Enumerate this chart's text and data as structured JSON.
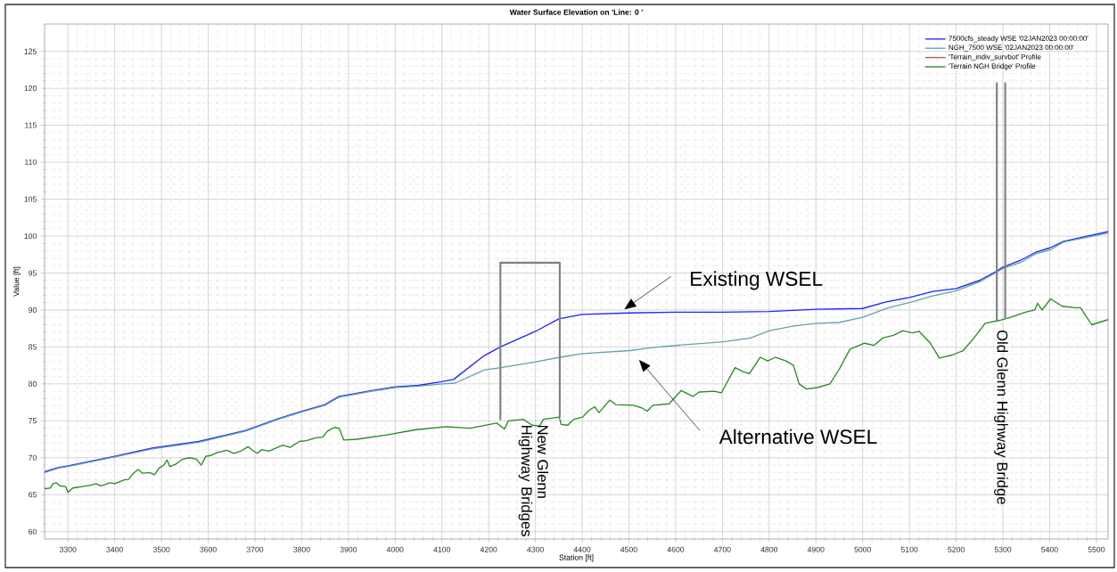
{
  "chart_data": {
    "type": "line",
    "title": "Water Surface Elevation on 'Line: 0 '",
    "xlabel": "Station [ft]",
    "ylabel": "Value [ft]",
    "xlim": [
      3250,
      5525
    ],
    "ylim": [
      59,
      128.7
    ],
    "xticks": [
      3300,
      3400,
      3500,
      3600,
      3700,
      3800,
      3900,
      4000,
      4100,
      4200,
      4300,
      4400,
      4500,
      4600,
      4700,
      4800,
      4900,
      5000,
      5100,
      5200,
      5300,
      5400,
      5500
    ],
    "yticks": [
      60,
      65,
      70,
      75,
      80,
      85,
      90,
      95,
      100,
      105,
      110,
      115,
      120,
      125
    ],
    "grid": true,
    "legend": "top right",
    "series": [
      {
        "name": "7500cfs_steady WSE '02JAN2023 00:00:00'",
        "color": "#2222ff",
        "x": [
          3250,
          3280,
          3300,
          3400,
          3480,
          3580,
          3680,
          3750,
          3800,
          3850,
          3880,
          3950,
          4000,
          4050,
          4100,
          4125,
          4190,
          4225,
          4300,
          4350,
          4400,
          4500,
          4600,
          4700,
          4800,
          4900,
          5000,
          5050,
          5100,
          5150,
          5200,
          5250,
          5285,
          5300,
          5340,
          5370,
          5400,
          5430,
          5525
        ],
        "values": [
          68.1,
          68.7,
          68.9,
          70.2,
          71.3,
          72.2,
          73.7,
          75.3,
          76.3,
          77.2,
          78.3,
          79.1,
          79.6,
          79.8,
          80.3,
          80.6,
          83.8,
          85.0,
          87.1,
          88.8,
          89.4,
          89.6,
          89.7,
          89.7,
          89.8,
          90.1,
          90.2,
          91.1,
          91.7,
          92.5,
          92.9,
          94.0,
          95.2,
          95.8,
          96.8,
          97.8,
          98.4,
          99.3,
          100.6
        ]
      },
      {
        "name": "NGH_7500 WSE '02JAN2023 00:00:00'",
        "color": "#62a3aa",
        "x": [
          3250,
          3280,
          3300,
          3400,
          3480,
          3580,
          3680,
          3750,
          3800,
          3850,
          3880,
          3950,
          4000,
          4050,
          4100,
          4128,
          4191,
          4226,
          4293,
          4352,
          4401,
          4502,
          4550,
          4600,
          4702,
          4760,
          4801,
          4850,
          4900,
          4949,
          5000,
          5055,
          5100,
          5150,
          5200,
          5250,
          5300,
          5340,
          5370,
          5400,
          5430,
          5525
        ],
        "values": [
          68.0,
          68.6,
          68.8,
          70.1,
          71.2,
          72.1,
          73.6,
          75.2,
          76.2,
          77.1,
          78.2,
          79.0,
          79.5,
          79.7,
          80.0,
          80.1,
          81.9,
          82.2,
          82.9,
          83.6,
          84.1,
          84.5,
          84.9,
          85.2,
          85.7,
          86.2,
          87.2,
          87.8,
          88.2,
          88.3,
          89.0,
          90.3,
          91.0,
          91.9,
          92.6,
          93.8,
          95.6,
          96.5,
          97.6,
          98.1,
          99.2,
          100.4
        ]
      },
      {
        "name": "'Terrain_indiv_survbot' Profile",
        "color": "#c0504d"
      },
      {
        "name": "'Terrain NGH Bridge' Profile",
        "color": "#2a8a22",
        "x": [
          3250,
          3262,
          3268,
          3275,
          3283,
          3295,
          3300,
          3310,
          3330,
          3350,
          3360,
          3370,
          3390,
          3400,
          3420,
          3430,
          3440,
          3450,
          3460,
          3475,
          3485,
          3495,
          3505,
          3512,
          3518,
          3530,
          3545,
          3560,
          3575,
          3585,
          3595,
          3605,
          3620,
          3640,
          3655,
          3670,
          3685,
          3695,
          3705,
          3715,
          3730,
          3745,
          3760,
          3775,
          3795,
          3810,
          3830,
          3845,
          3855,
          3870,
          3880,
          3890,
          3918,
          3982,
          4045,
          4109,
          4160,
          4217,
          4234,
          4242,
          4274,
          4293,
          4309,
          4317,
          4351,
          4355,
          4369,
          4382,
          4401,
          4414,
          4427,
          4436,
          4459,
          4472,
          4510,
          4529,
          4539,
          4551,
          4586,
          4612,
          4637,
          4650,
          4682,
          4698,
          4727,
          4746,
          4758,
          4781,
          4797,
          4813,
          4836,
          4852,
          4864,
          4880,
          4903,
          4930,
          4950,
          4973,
          5004,
          5024,
          5043,
          5067,
          5086,
          5106,
          5121,
          5145,
          5164,
          5191,
          5215,
          5238,
          5262,
          5293,
          5317,
          5348,
          5368,
          5374,
          5384,
          5402,
          5427,
          5455,
          5466,
          5490,
          5525
        ],
        "values": [
          65.8,
          65.9,
          66.5,
          66.6,
          66.2,
          66.1,
          65.3,
          65.9,
          66.1,
          66.3,
          66.5,
          66.2,
          66.6,
          66.5,
          67.0,
          67.1,
          67.9,
          68.4,
          67.9,
          68.0,
          67.7,
          68.6,
          69.0,
          69.7,
          68.8,
          69.1,
          69.8,
          70.0,
          69.8,
          69.0,
          70.2,
          70.3,
          70.7,
          71.0,
          70.6,
          70.9,
          71.5,
          71.0,
          70.6,
          71.1,
          70.9,
          71.3,
          71.7,
          71.4,
          72.2,
          72.3,
          72.7,
          72.8,
          73.6,
          74.1,
          74.0,
          72.4,
          72.5,
          73.1,
          73.8,
          74.2,
          74.0,
          74.7,
          73.9,
          75.0,
          75.2,
          74.4,
          74.3,
          75.2,
          75.5,
          74.5,
          74.4,
          75.2,
          75.5,
          76.4,
          76.9,
          76.1,
          77.8,
          77.2,
          77.1,
          76.7,
          76.3,
          77.1,
          77.3,
          79.1,
          78.3,
          78.9,
          79.0,
          78.8,
          82.2,
          81.6,
          81.4,
          83.6,
          83.1,
          83.6,
          83.1,
          82.5,
          80.0,
          79.3,
          79.5,
          80.0,
          82.0,
          84.7,
          85.5,
          85.2,
          86.2,
          86.6,
          87.2,
          86.9,
          87.1,
          85.5,
          83.5,
          83.9,
          84.5,
          86.2,
          88.2,
          88.6,
          89.0,
          89.7,
          90.0,
          90.9,
          90.0,
          91.5,
          90.5,
          90.3,
          90.3,
          88.0,
          88.7
        ]
      },
      {
        "color": "#808080",
        "x": [
          4225,
          4225,
          4352,
          4352
        ],
        "values": [
          75.1,
          96.4,
          96.4,
          75.5
        ]
      },
      {
        "color": "#808080",
        "x": [
          5287,
          5287,
          5296,
          5305,
          5305
        ],
        "values": [
          88.4,
          120.8,
          null,
          120.8,
          88.8
        ]
      }
    ],
    "annotations": [
      "Existing WSEL",
      "Alternative WSEL",
      {
        "text": "New Glenn Highway Bridges",
        "x": 4285,
        "y": 75
      },
      {
        "text": "Old Glenn Highway Bridge",
        "x": 5296,
        "y": 88
      }
    ]
  }
}
